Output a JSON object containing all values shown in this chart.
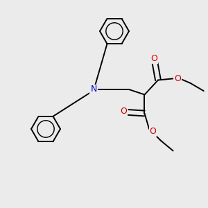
{
  "bg_color": "#ebebeb",
  "bond_color": "#000000",
  "N_color": "#0000cc",
  "O_color": "#cc0000",
  "line_width": 1.4,
  "fig_w": 3.0,
  "fig_h": 3.0,
  "dpi": 100,
  "xlim": [
    0,
    10
  ],
  "ylim": [
    0,
    10
  ]
}
